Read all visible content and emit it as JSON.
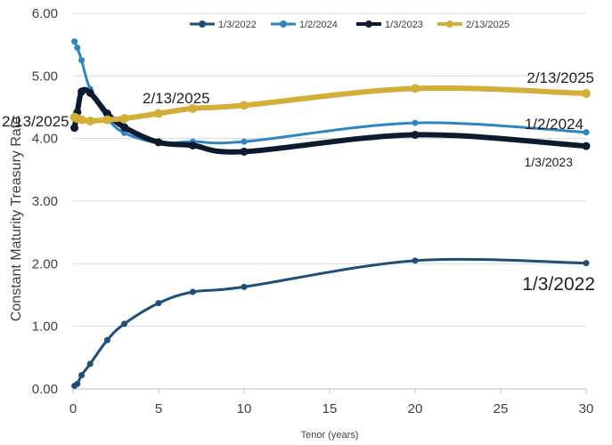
{
  "chart_data": {
    "type": "line",
    "title": "",
    "xlabel": "Tenor (years)",
    "ylabel": "Constant Maturity Treasury Rate",
    "xlim": [
      0,
      30
    ],
    "ylim": [
      0,
      6
    ],
    "x_ticks": [
      0,
      5,
      10,
      15,
      20,
      25,
      30
    ],
    "x_tick_labels": [
      "0",
      "5",
      "10",
      "15",
      "20",
      "25",
      "30"
    ],
    "y_ticks": [
      0,
      1,
      2,
      3,
      4,
      5,
      6
    ],
    "y_tick_labels": [
      "0.00",
      "1.00",
      "2.00",
      "3.00",
      "4.00",
      "5.00",
      "6.00"
    ],
    "grid": "horizontal",
    "legend_position": "top",
    "series": [
      {
        "name": "1/3/2022",
        "color": "#1f4e79",
        "x": [
          0.083,
          0.25,
          0.5,
          1,
          2,
          3,
          5,
          7,
          10,
          20,
          30
        ],
        "y": [
          0.05,
          0.08,
          0.22,
          0.4,
          0.78,
          1.04,
          1.37,
          1.55,
          1.63,
          2.05,
          2.01
        ],
        "annotation": "1/3/2022"
      },
      {
        "name": "1/2/2024",
        "color": "#2e86c1",
        "x": [
          0.083,
          0.25,
          0.5,
          1,
          2,
          3,
          5,
          7,
          10,
          20,
          30
        ],
        "y": [
          5.55,
          5.45,
          5.25,
          4.79,
          4.33,
          4.09,
          3.93,
          3.95,
          3.95,
          4.25,
          4.1
        ],
        "annotation": "1/2/2024"
      },
      {
        "name": "1/3/2023",
        "color": "#0d1b2e",
        "x": [
          0.083,
          0.25,
          0.5,
          1,
          2,
          3,
          5,
          7,
          10,
          20,
          30
        ],
        "y": [
          4.17,
          4.42,
          4.75,
          4.73,
          4.4,
          4.18,
          3.94,
          3.89,
          3.79,
          4.06,
          3.88
        ],
        "annotation": "1/3/2023"
      },
      {
        "name": "2/13/2025",
        "color": "#d4af37",
        "x": [
          0.083,
          0.25,
          0.5,
          1,
          2,
          3,
          5,
          7,
          10,
          20,
          30
        ],
        "y": [
          4.34,
          4.32,
          4.3,
          4.28,
          4.3,
          4.32,
          4.4,
          4.48,
          4.53,
          4.8,
          4.72
        ],
        "annotation": "2/13/2025"
      }
    ],
    "annotations": [
      {
        "text": "2/13/2025",
        "anchor": "left-edge"
      },
      {
        "text": "2/13/2025",
        "anchor": "x5"
      }
    ]
  }
}
